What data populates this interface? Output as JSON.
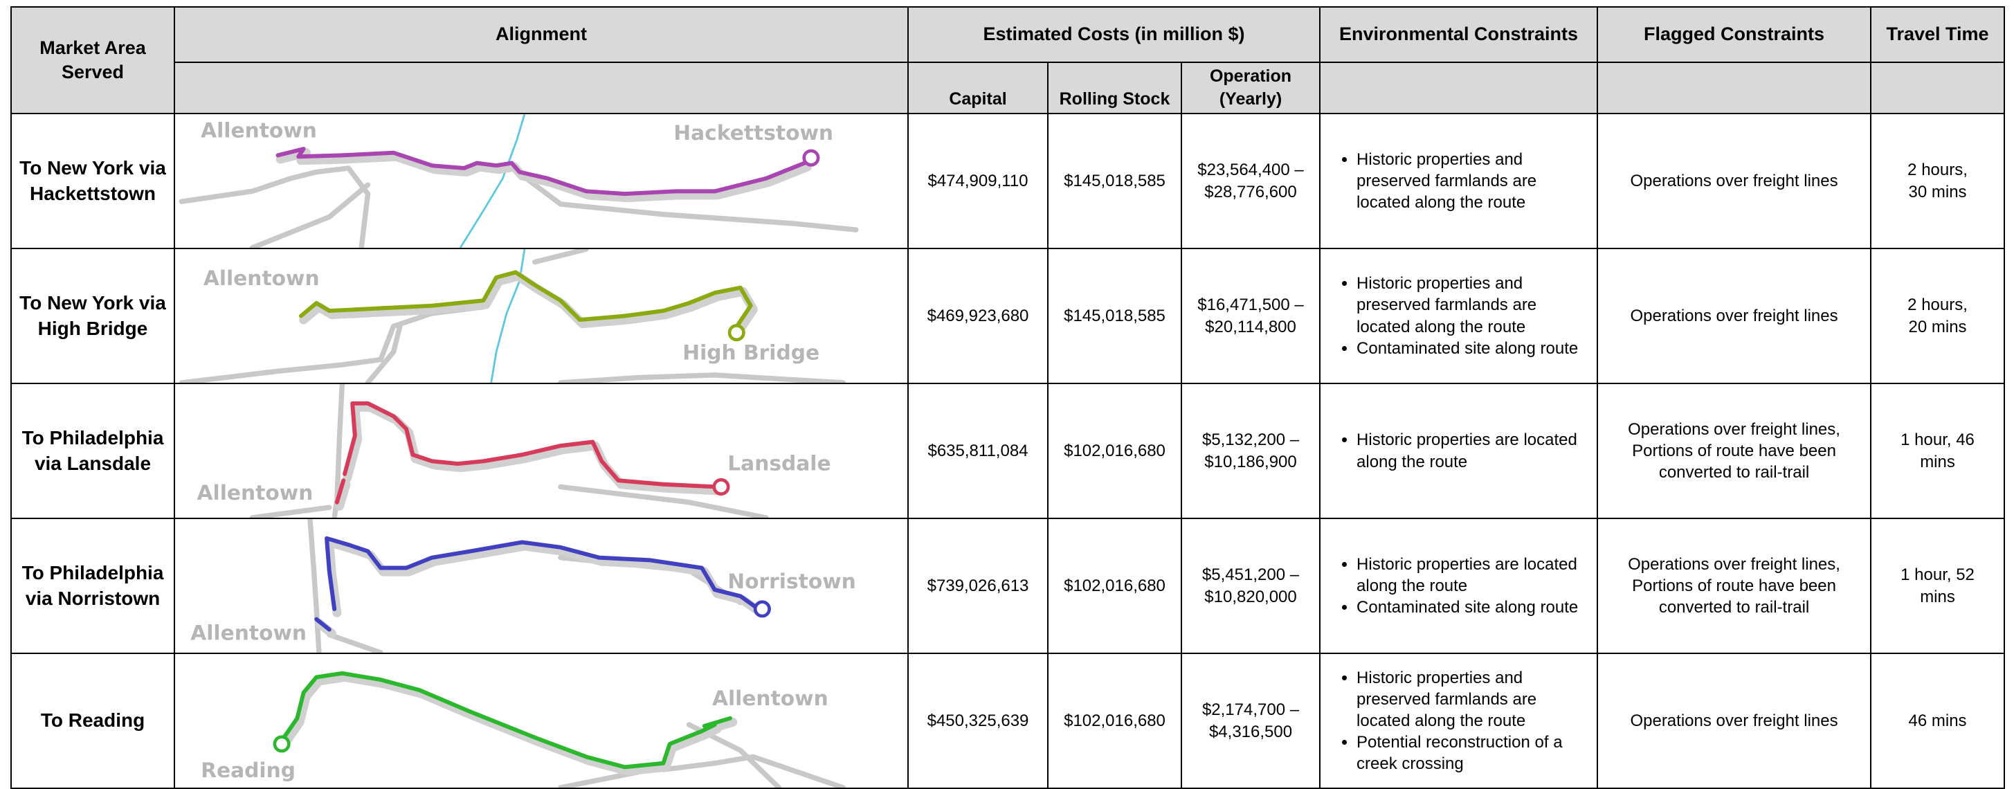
{
  "table": {
    "headers": {
      "market": "Market Area Served",
      "alignment": "Alignment",
      "costs": "Estimated Costs (in million $)",
      "capital": "Capital",
      "rolling_stock": "Rolling Stock",
      "operation": "Operation (Yearly)",
      "environmental": "Environmental Constraints",
      "flagged": "Flagged Constraints",
      "travel_time": "Travel Time"
    },
    "rows": [
      {
        "market": "To New York via Hackettstown",
        "map_labels": [
          "Allentown",
          "Hackettstown"
        ],
        "capital": "$474,909,110",
        "rolling_stock": "$145,018,585",
        "operation": "$23,564,400 – $28,776,600",
        "environmental": [
          "Historic properties and preserved farmlands are located along the route"
        ],
        "flagged": "Operations over freight lines",
        "travel_time": "2 hours, 30 mins"
      },
      {
        "market": "To New York via High Bridge",
        "map_labels": [
          "Allentown",
          "High Bridge"
        ],
        "capital": "$469,923,680",
        "rolling_stock": "$145,018,585",
        "operation": "$16,471,500 – $20,114,800",
        "environmental": [
          "Historic properties and preserved farmlands are located along the route",
          "Contaminated site along route"
        ],
        "flagged": "Operations over freight lines",
        "travel_time": "2 hours, 20 mins"
      },
      {
        "market": "To Philadelphia via Lansdale",
        "map_labels": [
          "Allentown",
          "Lansdale"
        ],
        "capital": "$635,811,084",
        "rolling_stock": "$102,016,680",
        "operation": "$5,132,200 – $10,186,900",
        "environmental": [
          "Historic properties are located along the route"
        ],
        "flagged": "Operations over freight lines, Portions of route have been converted to rail-trail",
        "travel_time": "1 hour, 46 mins"
      },
      {
        "market": "To Philadelphia via Norristown",
        "map_labels": [
          "Allentown",
          "Norristown"
        ],
        "capital": "$739,026,613",
        "rolling_stock": "$102,016,680",
        "operation": "$5,451,200 – $10,820,000",
        "environmental": [
          "Historic properties are located along the route",
          "Contaminated site along route"
        ],
        "flagged": "Operations over freight lines, Portions of route have been converted to rail-trail",
        "travel_time": "1 hour, 52 mins"
      },
      {
        "market": "To Reading",
        "map_labels": [
          "Allentown",
          "Reading"
        ],
        "capital": "$450,325,639",
        "rolling_stock": "$102,016,680",
        "operation": "$2,174,700 – $4,316,500",
        "environmental": [
          "Historic properties and preserved farmlands are located along the route",
          "Potential reconstruction of a creek crossing"
        ],
        "flagged": "Operations over freight lines",
        "travel_time": "46 mins"
      }
    ]
  }
}
